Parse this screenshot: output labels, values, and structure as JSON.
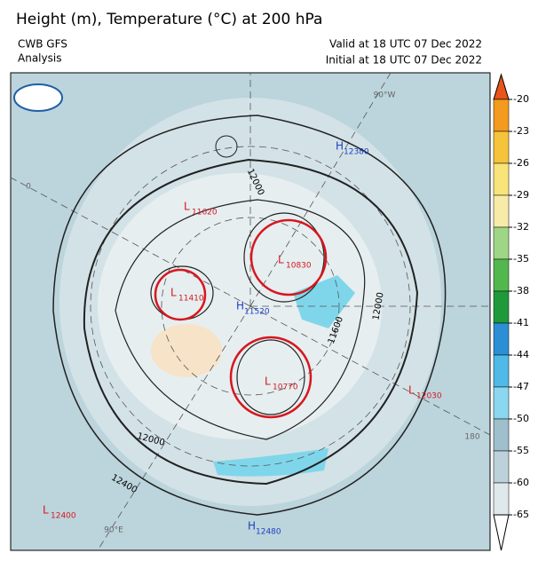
{
  "header": {
    "title": "Height (m), Temperature (°C) at 200 hPa",
    "source": "CWB GFS",
    "product": "Analysis",
    "valid": "Valid at 18 UTC 07 Dec 2022",
    "initial": "Initial at 18 UTC 07 Dec 2022"
  },
  "map": {
    "centers": [
      {
        "symbol": "H",
        "value": 12380
      },
      {
        "symbol": "L",
        "value": 11620
      },
      {
        "symbol": "L",
        "value": 10830
      },
      {
        "symbol": "L",
        "value": 11410
      },
      {
        "symbol": "H",
        "value": 11520
      },
      {
        "symbol": "L",
        "value": 10770
      },
      {
        "symbol": "L",
        "value": 12030
      },
      {
        "symbol": "L",
        "value": 12400
      },
      {
        "symbol": "H",
        "value": 12480
      }
    ],
    "contour_labels": [
      12000,
      11600,
      12000,
      12000,
      12400
    ],
    "longitude_labels": [
      "90°W",
      "0",
      "180",
      "90°E"
    ]
  },
  "colorbar": {
    "labels": [
      -20,
      -23,
      -26,
      -29,
      -32,
      -35,
      -38,
      -41,
      -44,
      -47,
      -50,
      -55,
      -60,
      -65
    ]
  }
}
